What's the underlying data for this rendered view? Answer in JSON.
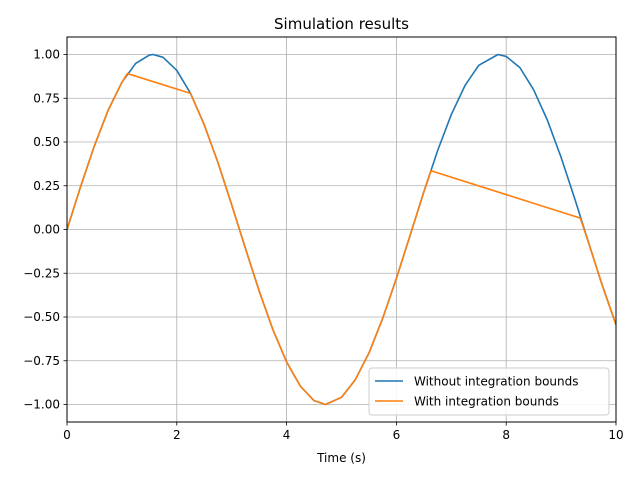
{
  "chart_data": {
    "type": "line",
    "title": "Simulation results",
    "xlabel": "Time (s)",
    "ylabel": "",
    "xlim": [
      0,
      10
    ],
    "ylim": [
      -1.1,
      1.1
    ],
    "xticks": [
      0,
      2,
      4,
      6,
      8,
      10
    ],
    "yticks": [
      -1.0,
      -0.75,
      -0.5,
      -0.25,
      0.0,
      0.25,
      0.5,
      0.75,
      1.0
    ],
    "xtick_labels": [
      "0",
      "2",
      "4",
      "6",
      "8",
      "10"
    ],
    "ytick_labels": [
      "−1.00",
      "−0.75",
      "−0.50",
      "−0.25",
      "0.00",
      "0.25",
      "0.50",
      "0.75",
      "1.00"
    ],
    "grid": true,
    "legend_position": "lower-right",
    "series": [
      {
        "name": "Without integration bounds",
        "color": "#1f77b4",
        "x": [
          0,
          0.25,
          0.5,
          0.75,
          1.0,
          1.25,
          1.5,
          1.57,
          1.75,
          2.0,
          2.25,
          2.5,
          2.75,
          3.0,
          3.25,
          3.5,
          3.75,
          4.0,
          4.25,
          4.5,
          4.71,
          5.0,
          5.25,
          5.5,
          5.75,
          6.0,
          6.25,
          6.5,
          6.75,
          7.0,
          7.25,
          7.5,
          7.85,
          8.0,
          8.25,
          8.5,
          8.75,
          9.0,
          9.25,
          9.5,
          9.75,
          10.0
        ],
        "y": [
          0,
          0.247,
          0.479,
          0.682,
          0.841,
          0.949,
          0.997,
          1.0,
          0.984,
          0.909,
          0.778,
          0.598,
          0.382,
          0.141,
          -0.108,
          -0.351,
          -0.572,
          -0.757,
          -0.895,
          -0.978,
          -1.0,
          -0.959,
          -0.859,
          -0.706,
          -0.508,
          -0.279,
          -0.033,
          0.215,
          0.45,
          0.657,
          0.823,
          0.938,
          1.0,
          0.989,
          0.925,
          0.798,
          0.625,
          0.412,
          0.174,
          -0.075,
          -0.319,
          -0.544
        ]
      },
      {
        "name": "With integration bounds",
        "color": "#ff7f0e",
        "x": [
          0,
          0.25,
          0.5,
          0.75,
          1.0,
          1.1,
          2.25,
          2.5,
          2.75,
          3.0,
          3.25,
          3.5,
          3.75,
          4.0,
          4.25,
          4.5,
          4.71,
          5.0,
          5.25,
          5.5,
          5.75,
          6.0,
          6.25,
          6.5,
          6.63,
          9.35,
          9.5,
          9.75,
          10.0
        ],
        "y": [
          0,
          0.247,
          0.479,
          0.682,
          0.841,
          0.891,
          0.778,
          0.598,
          0.382,
          0.141,
          -0.108,
          -0.351,
          -0.572,
          -0.757,
          -0.895,
          -0.978,
          -1.0,
          -0.959,
          -0.859,
          -0.706,
          -0.508,
          -0.279,
          -0.033,
          0.215,
          0.336,
          0.065,
          -0.075,
          -0.319,
          -0.544
        ]
      }
    ]
  }
}
